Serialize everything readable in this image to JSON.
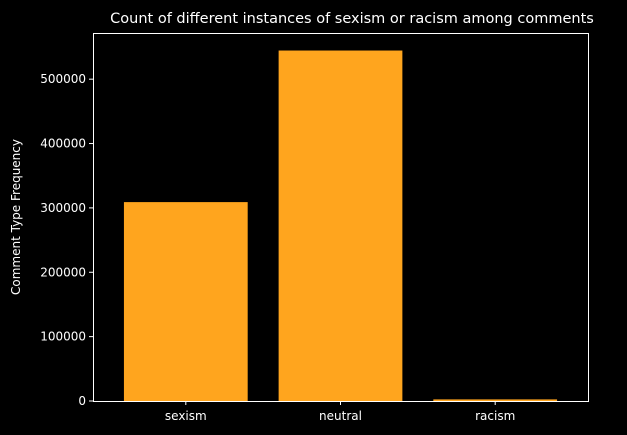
{
  "chart_data": {
    "type": "bar",
    "title": "Count of different instances of sexism or racism among comments",
    "xlabel": "",
    "ylabel": "Comment Type Frequency",
    "categories": [
      "sexism",
      "neutral",
      "racism"
    ],
    "values": [
      309000,
      544500,
      2500
    ],
    "ylim": [
      0,
      571725
    ],
    "yticks": [
      0,
      100000,
      200000,
      300000,
      400000,
      500000
    ],
    "ytick_labels": [
      "0",
      "100000",
      "200000",
      "300000",
      "400000",
      "500000"
    ],
    "grid": false,
    "legend": "none",
    "colors": {
      "background": "#000000",
      "bar": "#ffa51e",
      "axis": "#ffffff",
      "text": "#ffffff"
    }
  }
}
